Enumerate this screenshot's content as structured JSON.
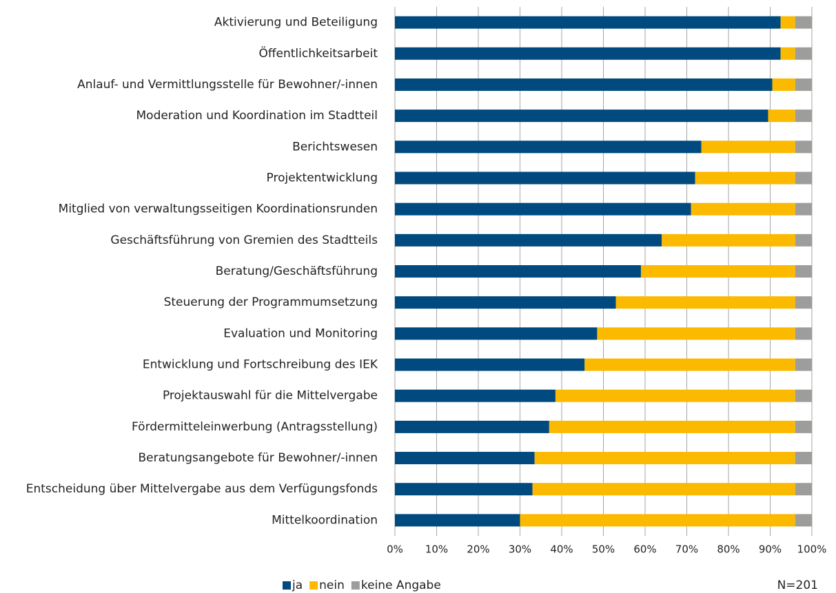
{
  "chart_data": {
    "type": "stacked-barh",
    "categories": [
      "Aktivierung und Beteiligung",
      "Öffentlichkeitsarbeit",
      "Anlauf- und Vermittlungsstelle für Bewohner/-innen",
      "Moderation und Koordination im Stadtteil",
      "Berichtswesen",
      "Projektentwicklung",
      "Mitglied von verwaltungsseitigen Koordinationsrunden",
      "Geschäftsführung von Gremien des Stadtteils",
      "Beratung/Geschäftsführung",
      "Steuerung der Programmumsetzung",
      "Evaluation und Monitoring",
      "Entwicklung und Fortschreibung des IEK",
      "Projektauswahl für die Mittelvergabe",
      "Fördermitteleinwerbung (Antragsstellung)",
      "Beratungsangebote für Bewohner/-innen",
      "Entscheidung über Mittelvergabe aus dem Verfügungsfonds",
      "Mittelkoordination"
    ],
    "series": [
      {
        "name": "ja",
        "color": "#004a7f",
        "values": [
          92.5,
          92.5,
          90.5,
          89.5,
          73.5,
          72,
          71,
          64,
          59,
          53,
          48.5,
          45.5,
          38.5,
          37,
          33.5,
          33,
          30
        ]
      },
      {
        "name": "nein",
        "color": "#fbb900",
        "values": [
          3.5,
          3.5,
          5.5,
          6.5,
          22.5,
          24,
          25,
          32,
          37,
          43,
          47.5,
          50.5,
          57.5,
          59,
          62.5,
          63,
          66
        ]
      },
      {
        "name": "keine Angabe",
        "color": "#9d9d9c",
        "values": [
          4,
          4,
          4,
          4,
          4,
          4,
          4,
          4,
          4,
          4,
          4,
          4,
          4,
          4,
          4,
          4,
          4
        ]
      }
    ],
    "xlim": [
      0,
      100
    ],
    "xticks": [
      {
        "value": 0,
        "label": "0%"
      },
      {
        "value": 10,
        "label": "10%"
      },
      {
        "value": 20,
        "label": "20%"
      },
      {
        "value": 30,
        "label": "30%"
      },
      {
        "value": 40,
        "label": "40%"
      },
      {
        "value": 50,
        "label": "50%"
      },
      {
        "value": 60,
        "label": "60%"
      },
      {
        "value": 70,
        "label": "70%"
      },
      {
        "value": 80,
        "label": "80%"
      },
      {
        "value": 90,
        "label": "90%"
      },
      {
        "value": 100,
        "label": "100%"
      }
    ],
    "grid": true,
    "legend": "bottom",
    "annotation": "N=201"
  }
}
